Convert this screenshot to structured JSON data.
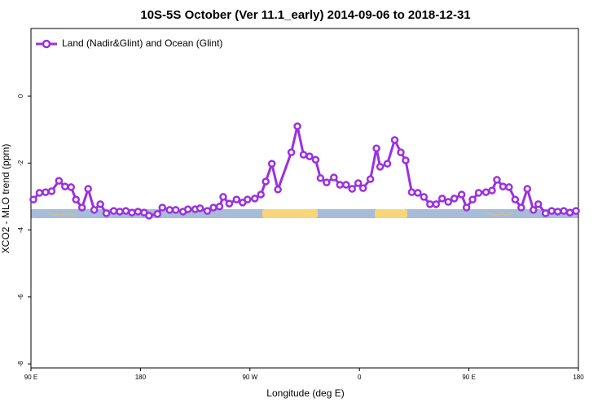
{
  "chart_data": {
    "type": "line",
    "title": "10S-5S October (Ver 11.1_early)   2014-09-06 to 2018-12-31",
    "x_label": "Longitude (deg E)",
    "y_label": "XCO2 - MLO trend (ppm)",
    "xlim": [
      90,
      540
    ],
    "ylim": [
      -8.12,
      2.02
    ],
    "xticks": [
      {
        "value": 90,
        "label": "90 E"
      },
      180,
      {
        "value": 270,
        "label": "90 W"
      },
      {
        "value": 360,
        "label": "0"
      },
      {
        "value": 450,
        "label": "90 E"
      },
      {
        "value": 540,
        "label": "180"
      }
    ],
    "yticks": [
      0,
      -2,
      -4,
      -6,
      -8
    ],
    "legend": "upper left",
    "x": [
      92,
      97,
      102,
      107,
      113,
      118,
      123,
      127,
      132,
      137,
      142,
      147,
      152,
      158,
      163,
      168,
      173,
      178,
      183,
      187,
      194,
      198,
      204,
      209,
      215,
      219,
      225,
      229,
      235,
      240,
      245,
      248,
      253,
      259,
      264,
      268,
      274,
      279,
      283,
      288,
      293,
      304,
      309,
      314,
      319,
      324,
      328,
      333,
      339,
      344,
      349,
      354,
      359,
      363,
      369,
      374,
      377,
      383,
      389,
      394,
      398,
      403,
      408,
      413,
      418,
      423,
      428,
      433,
      438,
      444,
      448,
      453,
      458,
      464,
      469,
      473,
      478,
      483,
      488,
      493,
      498,
      503,
      507,
      513,
      518,
      523,
      528,
      533,
      538
    ],
    "series": [
      {
        "name": "Land (Nadir&Glint) and Ocean (Glint)",
        "color": "#9b30e0",
        "values": [
          -3.09,
          -2.89,
          -2.87,
          -2.84,
          -2.53,
          -2.7,
          -2.72,
          -3.09,
          -3.33,
          -2.77,
          -3.4,
          -3.23,
          -3.5,
          -3.43,
          -3.45,
          -3.43,
          -3.48,
          -3.45,
          -3.48,
          -3.57,
          -3.52,
          -3.33,
          -3.4,
          -3.4,
          -3.45,
          -3.38,
          -3.38,
          -3.35,
          -3.43,
          -3.33,
          -3.3,
          -3.01,
          -3.21,
          -3.09,
          -3.18,
          -3.09,
          -3.06,
          -2.94,
          -2.55,
          -2.02,
          -2.79,
          -1.68,
          -0.9,
          -1.75,
          -1.8,
          -1.9,
          -2.45,
          -2.58,
          -2.43,
          -2.65,
          -2.65,
          -2.77,
          -2.6,
          -2.75,
          -2.48,
          -1.56,
          -2.11,
          -2.02,
          -1.31,
          -1.68,
          -1.92,
          -2.87,
          -2.89,
          -3.01,
          -3.23,
          -3.23,
          -3.06,
          -3.16,
          -3.06,
          -2.94,
          -3.33,
          -3.09,
          -2.89,
          -2.87,
          -2.82,
          -2.5,
          -2.7,
          -2.72,
          -3.09,
          -3.33,
          -2.77,
          -3.4,
          -3.23,
          -3.5,
          -3.43,
          -3.45,
          -3.43,
          -3.48,
          -3.43
        ]
      }
    ]
  }
}
